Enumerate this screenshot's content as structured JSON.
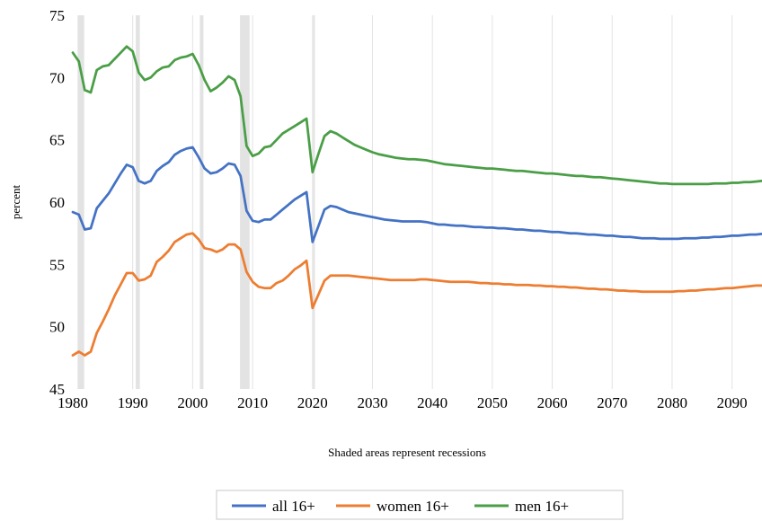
{
  "chart_data": {
    "type": "line",
    "ylabel": "percent",
    "note": "Shaded areas represent recessions",
    "xlim": [
      1980,
      2095
    ],
    "ylim": [
      45,
      75
    ],
    "x_ticks": [
      "1980",
      "1990",
      "2000",
      "2010",
      "2020",
      "2030",
      "2040",
      "2050",
      "2060",
      "2070",
      "2080",
      "2090"
    ],
    "y_ticks": [
      "45",
      "50",
      "55",
      "60",
      "65",
      "70",
      "75"
    ],
    "grid": "vertical",
    "legend_position": "bottom",
    "recessions": [
      [
        1980.8,
        1981.9
      ],
      [
        1990.5,
        1991.2
      ],
      [
        2001.2,
        2001.8
      ],
      [
        2007.9,
        2009.5
      ],
      [
        2020.1,
        2020.4
      ]
    ],
    "x": [
      1980,
      1981,
      1982,
      1983,
      1984,
      1985,
      1986,
      1987,
      1988,
      1989,
      1990,
      1991,
      1992,
      1993,
      1994,
      1995,
      1996,
      1997,
      1998,
      1999,
      2000,
      2001,
      2002,
      2003,
      2004,
      2005,
      2006,
      2007,
      2008,
      2009,
      2010,
      2011,
      2012,
      2013,
      2014,
      2015,
      2016,
      2017,
      2018,
      2019,
      2020,
      2021,
      2022,
      2023,
      2024,
      2025,
      2026,
      2027,
      2028,
      2029,
      2030,
      2031,
      2032,
      2033,
      2034,
      2035,
      2036,
      2037,
      2038,
      2039,
      2040,
      2041,
      2042,
      2043,
      2044,
      2045,
      2046,
      2047,
      2048,
      2049,
      2050,
      2051,
      2052,
      2053,
      2054,
      2055,
      2056,
      2057,
      2058,
      2059,
      2060,
      2061,
      2062,
      2063,
      2064,
      2065,
      2066,
      2067,
      2068,
      2069,
      2070,
      2071,
      2072,
      2073,
      2074,
      2075,
      2076,
      2077,
      2078,
      2079,
      2080,
      2081,
      2082,
      2083,
      2084,
      2085,
      2086,
      2087,
      2088,
      2089,
      2090,
      2091,
      2092,
      2093,
      2094,
      2095
    ],
    "series": [
      {
        "name": "all 16+",
        "color": "#4472C4",
        "values": [
          59.2,
          59.0,
          57.8,
          57.9,
          59.5,
          60.1,
          60.7,
          61.5,
          62.3,
          63.0,
          62.8,
          61.7,
          61.5,
          61.7,
          62.5,
          62.9,
          63.2,
          63.8,
          64.1,
          64.3,
          64.4,
          63.6,
          62.7,
          62.3,
          62.4,
          62.7,
          63.1,
          63.0,
          62.1,
          59.3,
          58.5,
          58.4,
          58.6,
          58.6,
          59.0,
          59.4,
          59.8,
          60.2,
          60.5,
          60.8,
          56.8,
          58.1,
          59.4,
          59.7,
          59.6,
          59.4,
          59.2,
          59.1,
          59.0,
          58.9,
          58.8,
          58.7,
          58.6,
          58.55,
          58.5,
          58.45,
          58.45,
          58.45,
          58.45,
          58.4,
          58.3,
          58.2,
          58.2,
          58.15,
          58.1,
          58.1,
          58.05,
          58.0,
          58.0,
          57.95,
          57.95,
          57.9,
          57.9,
          57.85,
          57.8,
          57.8,
          57.75,
          57.7,
          57.7,
          57.65,
          57.6,
          57.6,
          57.55,
          57.5,
          57.5,
          57.45,
          57.4,
          57.4,
          57.35,
          57.3,
          57.3,
          57.25,
          57.2,
          57.2,
          57.15,
          57.1,
          57.1,
          57.1,
          57.05,
          57.05,
          57.05,
          57.05,
          57.1,
          57.1,
          57.1,
          57.15,
          57.15,
          57.2,
          57.2,
          57.25,
          57.3,
          57.3,
          57.35,
          57.4,
          57.4,
          57.45
        ]
      },
      {
        "name": "women 16+",
        "color": "#ED7D31",
        "values": [
          47.7,
          48.0,
          47.7,
          48.0,
          49.5,
          50.4,
          51.4,
          52.5,
          53.4,
          54.3,
          54.3,
          53.7,
          53.8,
          54.1,
          55.2,
          55.6,
          56.1,
          56.8,
          57.1,
          57.4,
          57.5,
          57.0,
          56.3,
          56.2,
          56.0,
          56.2,
          56.6,
          56.6,
          56.2,
          54.4,
          53.6,
          53.2,
          53.1,
          53.1,
          53.5,
          53.7,
          54.1,
          54.6,
          54.9,
          55.3,
          51.5,
          52.6,
          53.7,
          54.1,
          54.1,
          54.1,
          54.1,
          54.05,
          54.0,
          53.95,
          53.9,
          53.85,
          53.8,
          53.75,
          53.75,
          53.75,
          53.75,
          53.75,
          53.8,
          53.8,
          53.75,
          53.7,
          53.65,
          53.6,
          53.6,
          53.6,
          53.6,
          53.55,
          53.5,
          53.5,
          53.45,
          53.45,
          53.4,
          53.4,
          53.35,
          53.35,
          53.35,
          53.3,
          53.3,
          53.25,
          53.25,
          53.2,
          53.2,
          53.15,
          53.15,
          53.1,
          53.05,
          53.05,
          53.0,
          53.0,
          52.95,
          52.9,
          52.9,
          52.85,
          52.85,
          52.8,
          52.8,
          52.8,
          52.8,
          52.8,
          52.8,
          52.85,
          52.85,
          52.9,
          52.9,
          52.95,
          53.0,
          53.0,
          53.05,
          53.1,
          53.1,
          53.15,
          53.2,
          53.25,
          53.3,
          53.3
        ]
      },
      {
        "name": "men 16+",
        "color": "#4A9E46",
        "values": [
          72.0,
          71.3,
          69.0,
          68.8,
          70.6,
          70.9,
          71.0,
          71.5,
          72.0,
          72.5,
          72.1,
          70.4,
          69.8,
          70.0,
          70.5,
          70.8,
          70.9,
          71.4,
          71.6,
          71.7,
          71.9,
          71.0,
          69.8,
          68.9,
          69.2,
          69.6,
          70.1,
          69.8,
          68.5,
          64.5,
          63.7,
          63.9,
          64.4,
          64.5,
          65.0,
          65.5,
          65.8,
          66.1,
          66.4,
          66.7,
          62.4,
          63.9,
          65.3,
          65.7,
          65.5,
          65.2,
          64.9,
          64.6,
          64.4,
          64.2,
          64.0,
          63.85,
          63.75,
          63.65,
          63.55,
          63.5,
          63.45,
          63.45,
          63.4,
          63.35,
          63.25,
          63.15,
          63.05,
          63.0,
          62.95,
          62.9,
          62.85,
          62.8,
          62.75,
          62.7,
          62.7,
          62.65,
          62.6,
          62.55,
          62.5,
          62.5,
          62.45,
          62.4,
          62.35,
          62.3,
          62.3,
          62.25,
          62.2,
          62.15,
          62.1,
          62.1,
          62.05,
          62.0,
          62.0,
          61.95,
          61.9,
          61.85,
          61.8,
          61.75,
          61.7,
          61.65,
          61.6,
          61.55,
          61.5,
          61.5,
          61.45,
          61.45,
          61.45,
          61.45,
          61.45,
          61.45,
          61.45,
          61.5,
          61.5,
          61.5,
          61.55,
          61.55,
          61.6,
          61.6,
          61.65,
          61.7
        ]
      }
    ]
  }
}
